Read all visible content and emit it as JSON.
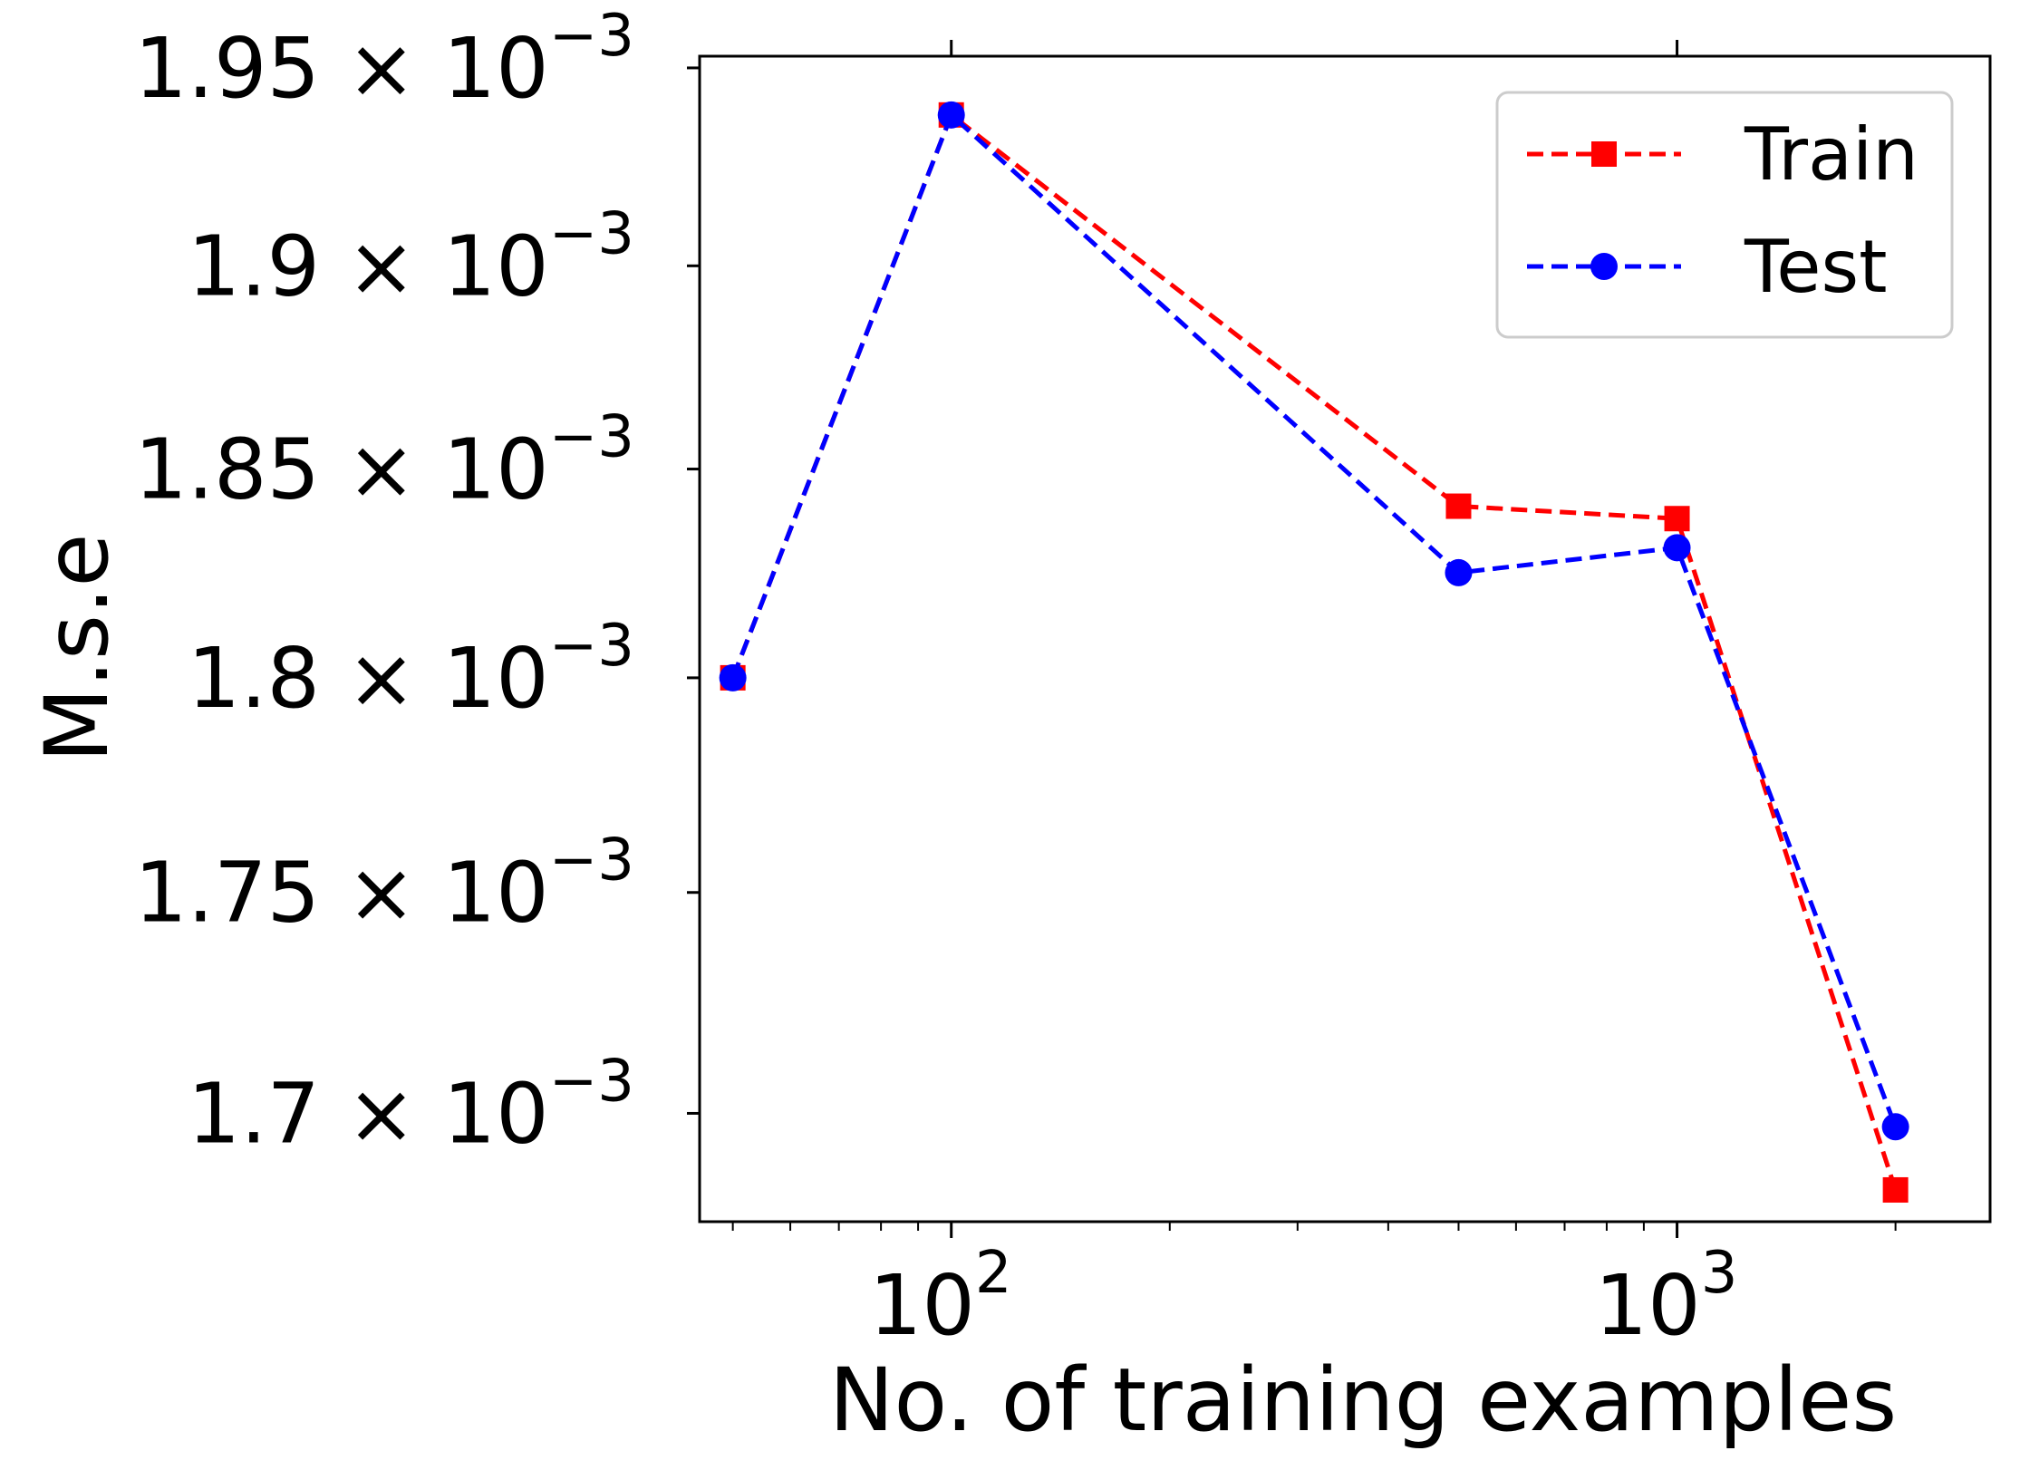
{
  "chart_data": {
    "type": "line",
    "xlabel": "No. of training examples",
    "ylabel": "M.s.e",
    "xscale": "log",
    "yscale": "log",
    "xlim": [
      45,
      2700
    ],
    "ylim": [
      0.001676,
      0.001953
    ],
    "grid": false,
    "legend_position": "top-right",
    "x": [
      50,
      100,
      500,
      1000,
      2000
    ],
    "x_ticks": [
      {
        "value": 100,
        "base": "10",
        "exp": "2"
      },
      {
        "value": 1000,
        "base": "10",
        "exp": "3"
      }
    ],
    "y_ticks": [
      {
        "value": 0.00195,
        "mantissa": "1.95",
        "times": "×",
        "base": "10",
        "exp": "−3"
      },
      {
        "value": 0.0019,
        "mantissa": "1.9",
        "times": "×",
        "base": "10",
        "exp": "−3"
      },
      {
        "value": 0.00185,
        "mantissa": "1.85",
        "times": "×",
        "base": "10",
        "exp": "−3"
      },
      {
        "value": 0.0018,
        "mantissa": "1.8",
        "times": "×",
        "base": "10",
        "exp": "−3"
      },
      {
        "value": 0.00175,
        "mantissa": "1.75",
        "times": "×",
        "base": "10",
        "exp": "−3"
      },
      {
        "value": 0.0017,
        "mantissa": "1.7",
        "times": "×",
        "base": "10",
        "exp": "−3"
      }
    ],
    "series": [
      {
        "name": "Train",
        "color": "#ff0000",
        "marker": "square",
        "line_style": "dashed",
        "values": [
          0.0018,
          0.001938,
          0.001841,
          0.001838,
          0.001683
        ]
      },
      {
        "name": "Test",
        "color": "#0000ff",
        "marker": "circle",
        "line_style": "dashed",
        "values": [
          0.0018,
          0.001938,
          0.001825,
          0.001831,
          0.001697
        ]
      }
    ]
  }
}
